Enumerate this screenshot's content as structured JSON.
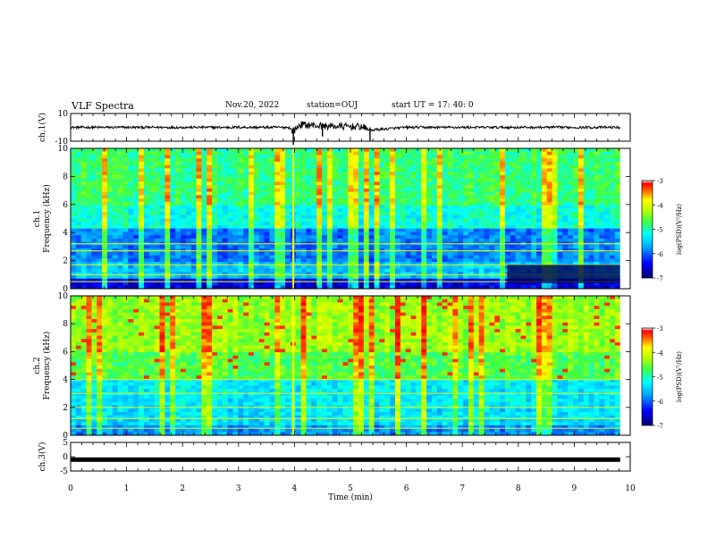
{
  "header": {
    "title": "VLF Spectra",
    "date": "Nov.20, 2022",
    "station": "station=OUJ",
    "start": "start  UT  =   17: 40: 0"
  },
  "chart_data": [
    {
      "type": "line",
      "panel": "ch1-waveform",
      "ylabel": "ch.1(V)",
      "ylim": [
        -10,
        10
      ],
      "yticks": [
        "10",
        "-10"
      ],
      "xlim": [
        0,
        10
      ],
      "x": [
        0,
        1,
        2,
        3,
        3.9,
        3.98,
        4.1,
        4.5,
        5.0,
        5.2,
        5.35,
        6,
        7,
        8,
        9,
        9.82
      ],
      "y": [
        0,
        0,
        0,
        0,
        0,
        -3,
        2,
        1,
        0.5,
        0.5,
        -2,
        0,
        0,
        0,
        0,
        0
      ],
      "color": "#000000"
    },
    {
      "type": "heatmap",
      "panel": "ch1-spectrogram",
      "ylabel_line1": "ch.1",
      "ylabel_line2": "Frequency  (kHz)",
      "ylim": [
        0,
        10
      ],
      "yticks": [
        "0",
        "2",
        "4",
        "6",
        "8",
        "10"
      ],
      "xlim": [
        0,
        10
      ],
      "data_end_min": 9.82,
      "colorbar": {
        "label": "log(PSD)(V²/Hz)",
        "range": [
          -7,
          -3
        ],
        "ticks": [
          "-3",
          "-4",
          "-5",
          "-6",
          "-7"
        ]
      },
      "events_min": [
        3.98
      ],
      "bands_khz": [
        0.5,
        1.0,
        1.7,
        2.7,
        3.2
      ]
    },
    {
      "type": "heatmap",
      "panel": "ch2-spectrogram",
      "ylabel_line1": "ch.2",
      "ylabel_line2": "Frequency  (kHz)",
      "ylim": [
        0,
        10
      ],
      "yticks": [
        "0",
        "2",
        "4",
        "6",
        "8",
        "10"
      ],
      "xlim": [
        0,
        10
      ],
      "data_end_min": 9.82,
      "colorbar": {
        "label": "log(PSD)(V²/Hz)",
        "range": [
          -7,
          -3
        ],
        "ticks": [
          "-3",
          "-4",
          "-5",
          "-6",
          "-7"
        ]
      },
      "events_min": [
        3.98
      ],
      "bands_khz": [
        0.5,
        1.2,
        2.0,
        3.0,
        4.0
      ]
    },
    {
      "type": "line",
      "panel": "ch3-waveform",
      "ylabel": "ch.3(V)",
      "ylim": [
        -5,
        5
      ],
      "yticks": [
        "5",
        "0",
        "-5"
      ],
      "xlim": [
        0,
        10
      ],
      "xticks": [
        "0",
        "1",
        "2",
        "3",
        "4",
        "5",
        "6",
        "7",
        "8",
        "9",
        "10"
      ],
      "xlabel": "Time  (min)",
      "x": [
        0,
        9.82
      ],
      "y": [
        -1,
        -1
      ],
      "color": "#000000"
    }
  ]
}
